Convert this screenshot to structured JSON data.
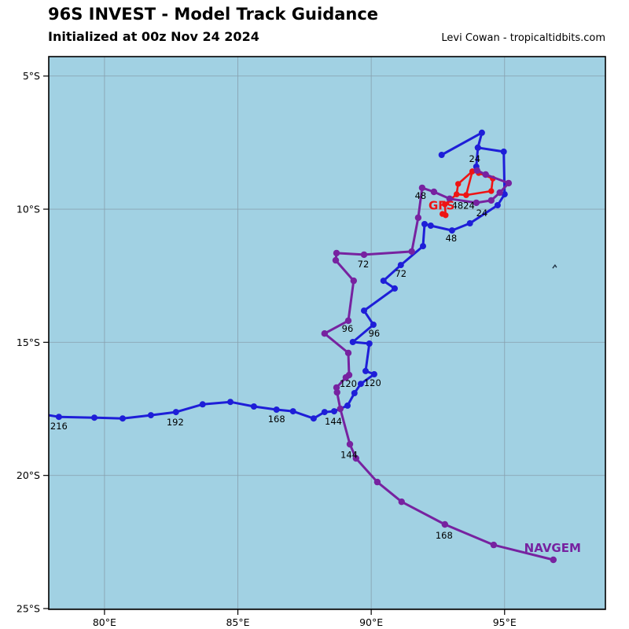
{
  "header": {
    "title": "96S INVEST - Model Track Guidance",
    "subtitle": "Initialized at 00z Nov 24 2024",
    "credit": "Levi Cowan - tropicaltidbits.com"
  },
  "chart_data": {
    "type": "line",
    "title": "96S INVEST - Model Track Guidance",
    "subtitle": "Initialized at 00z Nov 24 2024",
    "credit": "Levi Cowan - tropicaltidbits.com",
    "axes": {
      "lon": {
        "min": 77.91,
        "max": 98.78,
        "ticks": [
          80,
          85,
          90,
          95
        ],
        "tick_labels": [
          "80°E",
          "85°E",
          "90°E",
          "95°E"
        ]
      },
      "lat_s": {
        "min": 4.27,
        "max": 25.03,
        "ticks": [
          5,
          10,
          15,
          20,
          25
        ],
        "tick_labels": [
          "5°S",
          "10°S",
          "15°S",
          "20°S",
          "25°S"
        ]
      },
      "grid": true
    },
    "colors": {
      "ocean": "#a1d1e3",
      "grid": "#87a0ae",
      "border": "#000000",
      "blue": "#1e1ed8",
      "red": "#ee1414",
      "purple": "#7722a0",
      "hour_label": "#000000"
    },
    "tracks": [
      {
        "id": "blue-model",
        "color_key": "blue",
        "label": null,
        "polylines": [
          [
            [
              92.64,
              7.96
            ],
            [
              94.15,
              7.13
            ],
            [
              94.0,
              7.69
            ],
            [
              93.94,
              8.4
            ]
          ],
          [
            [
              94.0,
              7.69
            ],
            [
              94.97,
              7.84
            ],
            [
              95.0,
              9.44
            ],
            [
              94.74,
              9.85
            ],
            [
              93.7,
              10.53
            ],
            [
              93.03,
              10.8
            ],
            [
              92.23,
              10.62
            ],
            [
              92.0,
              10.56
            ],
            [
              91.94,
              11.39
            ],
            [
              91.11,
              12.1
            ],
            [
              90.46,
              12.69
            ],
            [
              90.88,
              12.98
            ],
            [
              89.73,
              13.81
            ],
            [
              90.08,
              14.34
            ],
            [
              89.31,
              14.99
            ],
            [
              89.93,
              15.05
            ],
            [
              89.79,
              16.08
            ],
            [
              90.11,
              16.2
            ],
            [
              89.61,
              16.56
            ],
            [
              89.37,
              16.91
            ],
            [
              89.11,
              17.38
            ],
            [
              88.61,
              17.59
            ],
            [
              88.25,
              17.62
            ],
            [
              87.84,
              17.86
            ],
            [
              87.07,
              17.59
            ],
            [
              86.45,
              17.53
            ],
            [
              85.6,
              17.41
            ],
            [
              84.72,
              17.24
            ],
            [
              83.68,
              17.33
            ],
            [
              82.68,
              17.62
            ],
            [
              81.74,
              17.74
            ],
            [
              80.68,
              17.86
            ],
            [
              79.62,
              17.83
            ],
            [
              78.29,
              17.8
            ],
            [
              77.91,
              17.74
            ]
          ]
        ],
        "hour_labels": [
          {
            "t": "24",
            "lon": 93.88,
            "latS": 8.11
          },
          {
            "t": "24",
            "lon": 94.15,
            "latS": 10.15
          },
          {
            "t": "48",
            "lon": 93.0,
            "latS": 11.09
          },
          {
            "t": "72",
            "lon": 91.11,
            "latS": 12.42
          },
          {
            "t": "96",
            "lon": 90.11,
            "latS": 14.67
          },
          {
            "t": "120",
            "lon": 90.05,
            "latS": 16.53
          },
          {
            "t": "144",
            "lon": 88.58,
            "latS": 17.97
          },
          {
            "t": "168",
            "lon": 86.45,
            "latS": 17.89
          },
          {
            "t": "192",
            "lon": 82.65,
            "latS": 18.0
          },
          {
            "t": "216",
            "lon": 78.29,
            "latS": 18.15
          }
        ]
      },
      {
        "id": "gfs",
        "color_key": "red",
        "label": {
          "text": "GFS",
          "lon": 92.64,
          "latS": 9.87
        },
        "polylines": [
          [
            [
              92.67,
              10.18
            ],
            [
              92.79,
              10.23
            ],
            [
              92.76,
              9.82
            ],
            [
              93.2,
              9.44
            ],
            [
              93.26,
              9.05
            ],
            [
              93.79,
              8.58
            ],
            [
              94.03,
              8.64
            ],
            [
              94.56,
              8.85
            ],
            [
              94.5,
              9.32
            ],
            [
              93.56,
              9.47
            ],
            [
              93.2,
              9.44
            ]
          ],
          [
            [
              93.79,
              8.58
            ],
            [
              93.56,
              9.47
            ]
          ]
        ],
        "hour_labels": [
          {
            "t": "4824",
            "lon": 93.45,
            "latS": 9.86
          }
        ]
      },
      {
        "id": "navgem",
        "color_key": "purple",
        "label": {
          "text": "NAVGEM",
          "lon": 96.8,
          "latS": 22.73
        },
        "polylines": [
          [
            [
              93.97,
              8.55
            ],
            [
              94.29,
              8.7
            ],
            [
              95.15,
              9.02
            ],
            [
              94.82,
              9.38
            ],
            [
              94.5,
              9.67
            ],
            [
              93.94,
              9.76
            ],
            [
              92.94,
              9.61
            ],
            [
              92.35,
              9.35
            ],
            [
              91.91,
              9.2
            ],
            [
              91.76,
              10.32
            ],
            [
              91.52,
              11.59
            ],
            [
              89.73,
              11.71
            ],
            [
              88.7,
              11.65
            ],
            [
              88.67,
              11.92
            ],
            [
              89.34,
              12.69
            ],
            [
              89.14,
              14.19
            ],
            [
              88.25,
              14.67
            ],
            [
              89.14,
              15.4
            ],
            [
              89.17,
              16.23
            ],
            [
              89.05,
              16.32
            ],
            [
              88.7,
              16.7
            ],
            [
              88.72,
              16.88
            ],
            [
              88.84,
              17.5
            ],
            [
              89.2,
              18.83
            ],
            [
              89.43,
              19.36
            ],
            [
              90.23,
              20.25
            ],
            [
              91.14,
              20.99
            ],
            [
              92.76,
              21.84
            ],
            [
              94.59,
              22.61
            ],
            [
              96.83,
              23.17
            ]
          ]
        ],
        "hour_labels": [
          {
            "t": "48",
            "lon": 91.85,
            "latS": 9.5
          },
          {
            "t": "72",
            "lon": 89.7,
            "latS": 12.07
          },
          {
            "t": "96",
            "lon": 89.11,
            "latS": 14.49
          },
          {
            "t": "120",
            "lon": 89.14,
            "latS": 16.56
          },
          {
            "t": "144",
            "lon": 89.17,
            "latS": 19.22
          },
          {
            "t": "168",
            "lon": 92.73,
            "latS": 22.26
          }
        ]
      }
    ],
    "decorations": [
      {
        "type": "stray-mark",
        "lon": 96.89,
        "latS": 12.16
      }
    ]
  }
}
